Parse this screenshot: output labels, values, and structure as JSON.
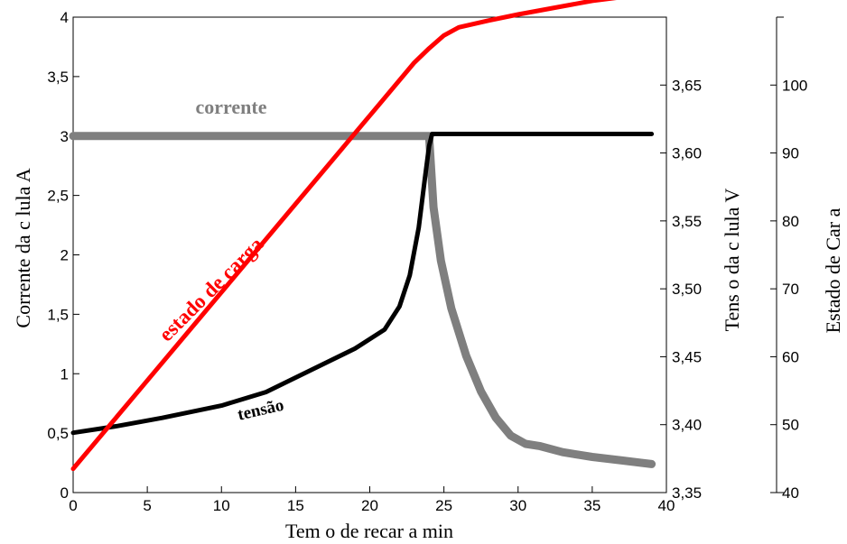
{
  "chart_data": {
    "type": "line",
    "xlabel": "Tem  o de recar  a  min",
    "ylabel_left": "Corrente da c  lula  A",
    "ylabel_right": "Tens  o da c  lula  V",
    "ylabel_right2": "Estado de Car  a",
    "x_ticks": [
      "0",
      "5",
      "10",
      "15",
      "20",
      "25",
      "30",
      "35",
      "40"
    ],
    "y_left_ticks": [
      "0",
      "0,5",
      "1",
      "1,5",
      "2",
      "2,5",
      "3",
      "3,5",
      "4"
    ],
    "y_right_ticks": [
      "3,35",
      "3,40",
      "3,45",
      "3,50",
      "3,55",
      "3,60",
      "3,65"
    ],
    "y_right2_ticks": [
      "40",
      "50",
      "60",
      "70",
      "80",
      "90",
      "100"
    ],
    "xlim": [
      0,
      40
    ],
    "ylim_left": [
      0,
      4
    ],
    "ylim_right": [
      3.35,
      3.7
    ],
    "ylim_right2": [
      40,
      110
    ],
    "grid": false,
    "series": [
      {
        "name": "corrente",
        "axis": "left",
        "color": "#7f7f7f",
        "x": [
          0,
          5,
          10,
          15,
          20,
          23,
          24,
          24.3,
          24.8,
          25.5,
          26.5,
          27.5,
          28.5,
          29.5,
          30.5,
          31.5,
          33,
          35,
          37,
          39
        ],
        "y": [
          3.0,
          3.0,
          3.0,
          3.0,
          3.0,
          3.0,
          3.0,
          2.4,
          1.95,
          1.55,
          1.15,
          0.85,
          0.63,
          0.48,
          0.41,
          0.39,
          0.34,
          0.3,
          0.27,
          0.24
        ]
      },
      {
        "name": "tensão",
        "axis": "right",
        "color": "#000000",
        "x": [
          0,
          3,
          6,
          10,
          13,
          16,
          19,
          21,
          22,
          22.7,
          23.3,
          23.7,
          24,
          24.2,
          25,
          30,
          35,
          39
        ],
        "y": [
          3.394,
          3.399,
          3.405,
          3.414,
          3.424,
          3.44,
          3.456,
          3.47,
          3.487,
          3.51,
          3.545,
          3.58,
          3.605,
          3.614,
          3.614,
          3.614,
          3.614,
          3.614
        ]
      },
      {
        "name": "estado de carga",
        "axis": "right2",
        "color": "#ff0000",
        "x": [
          0,
          5,
          10,
          15,
          20,
          23,
          24,
          25,
          26,
          28,
          30,
          35,
          39
        ],
        "y": [
          43.5,
          56.5,
          69.5,
          82.5,
          95.5,
          103.3,
          105.4,
          107.3,
          108.5,
          109.5,
          110.4,
          112.4,
          113.5
        ]
      }
    ],
    "annotations": [
      {
        "text": "corrente",
        "color": "#7f7f7f"
      },
      {
        "text": "estado de carga",
        "color": "#ff0000"
      },
      {
        "text": "tensão",
        "color": "#000000"
      }
    ]
  }
}
